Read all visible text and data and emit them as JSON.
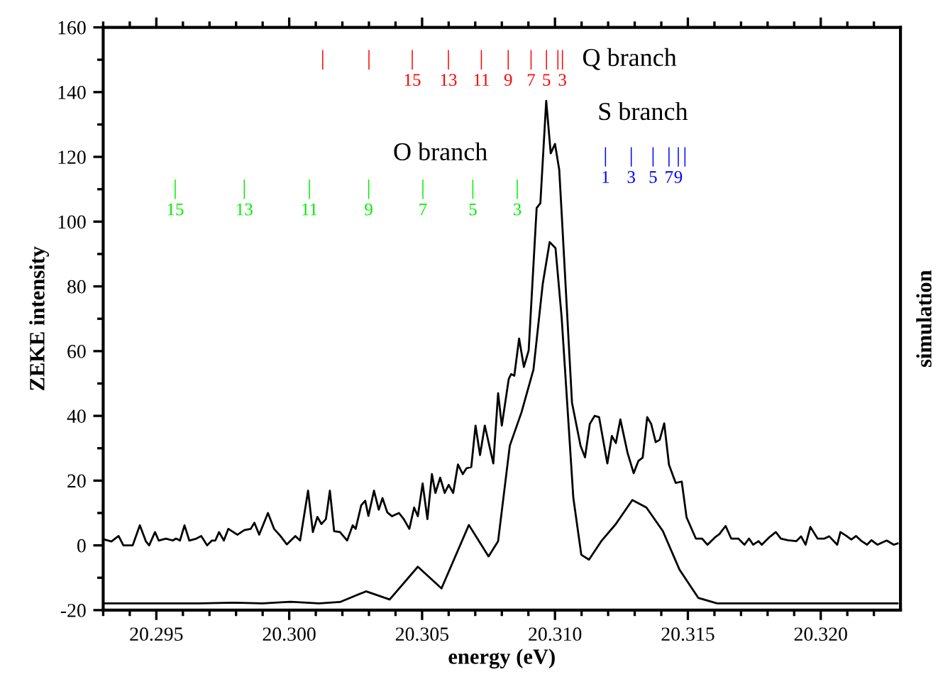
{
  "chart_data": {
    "type": "line",
    "xlabel": "energy (eV)",
    "ylabel": "ZEKE intensity",
    "y2label": "simulation",
    "xlim": [
      20.293,
      20.323
    ],
    "xticks": [
      {
        "value": 20.295,
        "label": "20.295"
      },
      {
        "value": 20.3,
        "label": "20.300"
      },
      {
        "value": 20.305,
        "label": "20.305"
      },
      {
        "value": 20.31,
        "label": "20.310"
      },
      {
        "value": 20.315,
        "label": "20.315"
      },
      {
        "value": 20.32,
        "label": "20.320"
      }
    ],
    "ylim": [
      -20,
      160
    ],
    "yticks": [
      -20,
      0,
      20,
      40,
      60,
      80,
      100,
      120,
      140,
      160
    ],
    "grid": false,
    "legend": false,
    "line_style": "solid",
    "series": [
      {
        "color": "#000000",
        "x": [
          20.29305,
          20.29331,
          20.29358,
          20.29376,
          20.29411,
          20.29438,
          20.29461,
          20.29473,
          20.29495,
          20.29509,
          20.29536,
          20.29562,
          20.29574,
          20.29589,
          20.29606,
          20.29624,
          20.29651,
          20.29669,
          20.29691,
          20.29709,
          20.29722,
          20.29736,
          20.29754,
          20.29771,
          20.29805,
          20.29831,
          20.29855,
          20.29869,
          20.29887,
          20.2992,
          20.29943,
          20.29967,
          20.29991,
          20.30023,
          20.30041,
          20.30071,
          20.30089,
          20.30106,
          20.30121,
          20.30138,
          20.30153,
          20.30169,
          20.30191,
          20.30218,
          20.30239,
          20.3025,
          20.30271,
          20.30286,
          20.30298,
          20.30319,
          20.30337,
          20.30351,
          20.30369,
          20.30387,
          20.30413,
          20.30431,
          20.30452,
          20.3047,
          20.30484,
          20.30502,
          20.3052,
          20.30537,
          20.3055,
          20.30568,
          20.30585,
          20.306,
          20.30617,
          20.30635,
          20.30653,
          20.30667,
          20.30685,
          20.30701,
          20.30718,
          20.30736,
          20.30768,
          20.30786,
          20.308,
          20.30826,
          20.30835,
          20.30847,
          20.30865,
          20.30883,
          20.30901,
          20.30931,
          20.30945,
          20.30967,
          20.30984,
          20.31,
          20.31016,
          20.31025,
          20.31064,
          20.31096,
          20.31113,
          20.31131,
          20.31149,
          20.31166,
          20.31197,
          20.31214,
          20.31229,
          20.31246,
          20.31273,
          20.31296,
          20.31314,
          20.3133,
          20.31347,
          20.31362,
          20.31379,
          20.31394,
          20.31411,
          20.31429,
          20.31454,
          20.31477,
          20.31495,
          20.3153,
          20.31553,
          20.31574,
          20.31601,
          20.31619,
          20.31642,
          20.31663,
          20.3169,
          20.31713,
          20.3173,
          20.31746,
          20.31766,
          20.31778,
          20.31805,
          20.31831,
          20.3185,
          20.31876,
          20.31908,
          20.31926,
          20.31943,
          20.31961,
          20.31988,
          20.32014,
          20.32032,
          20.32062,
          20.32074,
          20.32097,
          20.32115,
          20.32133,
          20.32151,
          20.32174,
          20.32191,
          20.32213,
          20.32248,
          20.32275,
          20.32289
        ],
        "values": [
          1.8,
          1.2,
          2.9,
          0,
          0,
          6.2,
          1.2,
          0,
          4.1,
          1.5,
          2.1,
          1.5,
          2.1,
          1.5,
          6.2,
          1.5,
          2.1,
          2.9,
          0,
          1.5,
          1.5,
          4.1,
          1.5,
          5.1,
          3.3,
          4.7,
          5.1,
          7.0,
          3.3,
          10.0,
          5.1,
          2.9,
          0.3,
          2.9,
          1.5,
          16.9,
          4.1,
          8.8,
          6.6,
          8.1,
          16.9,
          4.4,
          4.1,
          1.5,
          6.2,
          5.1,
          12.4,
          13.8,
          9.1,
          16.9,
          11.0,
          14.6,
          10.2,
          9.0,
          10.0,
          8.1,
          5.1,
          11.7,
          9.0,
          19.1,
          8.1,
          22.0,
          16.2,
          20.9,
          16.2,
          18.7,
          16.2,
          25.0,
          22.0,
          23.8,
          24.2,
          37.0,
          27.9,
          37.0,
          25.3,
          47.0,
          37.0,
          51.4,
          52.9,
          52.4,
          63.9,
          55.1,
          60.2,
          104.2,
          105.7,
          137.3,
          121.1,
          124.0,
          116.0,
          102.8,
          44.1,
          30.8,
          27.2,
          37.5,
          40.0,
          39.6,
          25.3,
          33.8,
          31.6,
          38.9,
          28.6,
          22.3,
          26.1,
          27.1,
          39.6,
          37.5,
          31.9,
          32.6,
          37.7,
          24.9,
          19.3,
          19.7,
          8.7,
          2.1,
          2.1,
          0.2,
          2.4,
          3.5,
          6.0,
          2.1,
          2.1,
          0.2,
          2.1,
          0.2,
          1.3,
          0.2,
          2.4,
          4.1,
          2.1,
          1.6,
          1.3,
          2.8,
          0.2,
          5.7,
          2.1,
          2.1,
          2.8,
          0.2,
          4.1,
          2.9,
          1.8,
          2.9,
          1.5,
          0.2,
          1.6,
          0.2,
          1.5,
          0.2,
          0.6
        ]
      },
      {
        "color": "#000000",
        "x": [
          20.29305,
          20.2966,
          20.29793,
          20.29899,
          20.30005,
          20.30112,
          20.30191,
          20.30289,
          20.30378,
          20.30484,
          20.30573,
          20.30676,
          20.3075,
          20.30786,
          20.3083,
          20.30874,
          20.30919,
          20.30954,
          20.3098,
          20.31002,
          20.31025,
          20.31069,
          20.31099,
          20.31128,
          20.31176,
          20.31229,
          20.31291,
          20.31344,
          20.31406,
          20.31468,
          20.31539,
          20.3161,
          20.32289
        ],
        "values": [
          -17.9,
          -17.9,
          -17.7,
          -17.9,
          -17.4,
          -17.9,
          -17.5,
          -14.2,
          -16.7,
          -6.6,
          -13.3,
          6.3,
          -3.4,
          1.3,
          30.8,
          41.1,
          54.3,
          80.8,
          93.7,
          91.8,
          70.5,
          14.7,
          -2.9,
          -4.4,
          1.5,
          6.6,
          14.0,
          11.7,
          4.4,
          -7.4,
          -16.2,
          -17.9,
          -17.9
        ]
      },
      {
        "type": "bar",
        "color": "#ff0000",
        "x": [
          20.30126,
          20.303,
          20.30463,
          20.30599,
          20.30723,
          20.30824,
          20.3091,
          20.30968,
          20.31011,
          20.31028
        ],
        "base": [
          147,
          147,
          147,
          147,
          147,
          147,
          147,
          147,
          147,
          147
        ],
        "values": [
          6,
          6,
          6,
          6,
          6,
          6,
          6,
          6,
          6,
          6
        ]
      },
      {
        "type": "bar",
        "color": "#0000ff",
        "x": [
          20.3119,
          20.31287,
          20.31369,
          20.31429,
          20.31464,
          20.31489
        ],
        "base": [
          117,
          117,
          117,
          117,
          117,
          117
        ],
        "values": [
          6,
          6,
          6,
          6,
          6,
          6
        ]
      },
      {
        "type": "bar",
        "color": "#00ee00",
        "x": [
          20.29571,
          20.29831,
          20.30076,
          20.30299,
          20.30503,
          20.30691,
          20.30858
        ],
        "base": [
          107,
          107,
          107,
          107,
          107,
          107,
          107
        ],
        "values": [
          6,
          6,
          6,
          6,
          6,
          6,
          6
        ]
      }
    ],
    "annotations": [
      "Q branch",
      "S branch",
      "O branch",
      {
        "text": "15",
        "x": 20.30463,
        "y": 147
      },
      {
        "text": "13",
        "x": 20.30599,
        "y": 147
      },
      {
        "text": "11",
        "x": 20.30723,
        "y": 147
      },
      {
        "text": "9",
        "x": 20.30824,
        "y": 147
      },
      {
        "text": "7",
        "x": 20.3091,
        "y": 147
      },
      {
        "text": "5",
        "x": 20.30968,
        "y": 147
      },
      {
        "text": "3",
        "x": 20.31028,
        "y": 147
      },
      {
        "text": "15",
        "x": 20.29571,
        "y": 107
      },
      {
        "text": "13",
        "x": 20.29831,
        "y": 107
      },
      {
        "text": "11",
        "x": 20.30076,
        "y": 107
      },
      {
        "text": "9",
        "x": 20.30299,
        "y": 107
      },
      {
        "text": "7",
        "x": 20.30503,
        "y": 107
      },
      {
        "text": "5",
        "x": 20.30691,
        "y": 107
      },
      {
        "text": "3",
        "x": 20.30858,
        "y": 107
      },
      {
        "text": "1",
        "x": 20.3119,
        "y": 117
      },
      {
        "text": "3",
        "x": 20.31287,
        "y": 117
      },
      {
        "text": "5",
        "x": 20.31369,
        "y": 117
      },
      {
        "text": "7",
        "x": 20.31429,
        "y": 117
      },
      {
        "text": "9",
        "x": 20.31464,
        "y": 117
      }
    ]
  }
}
